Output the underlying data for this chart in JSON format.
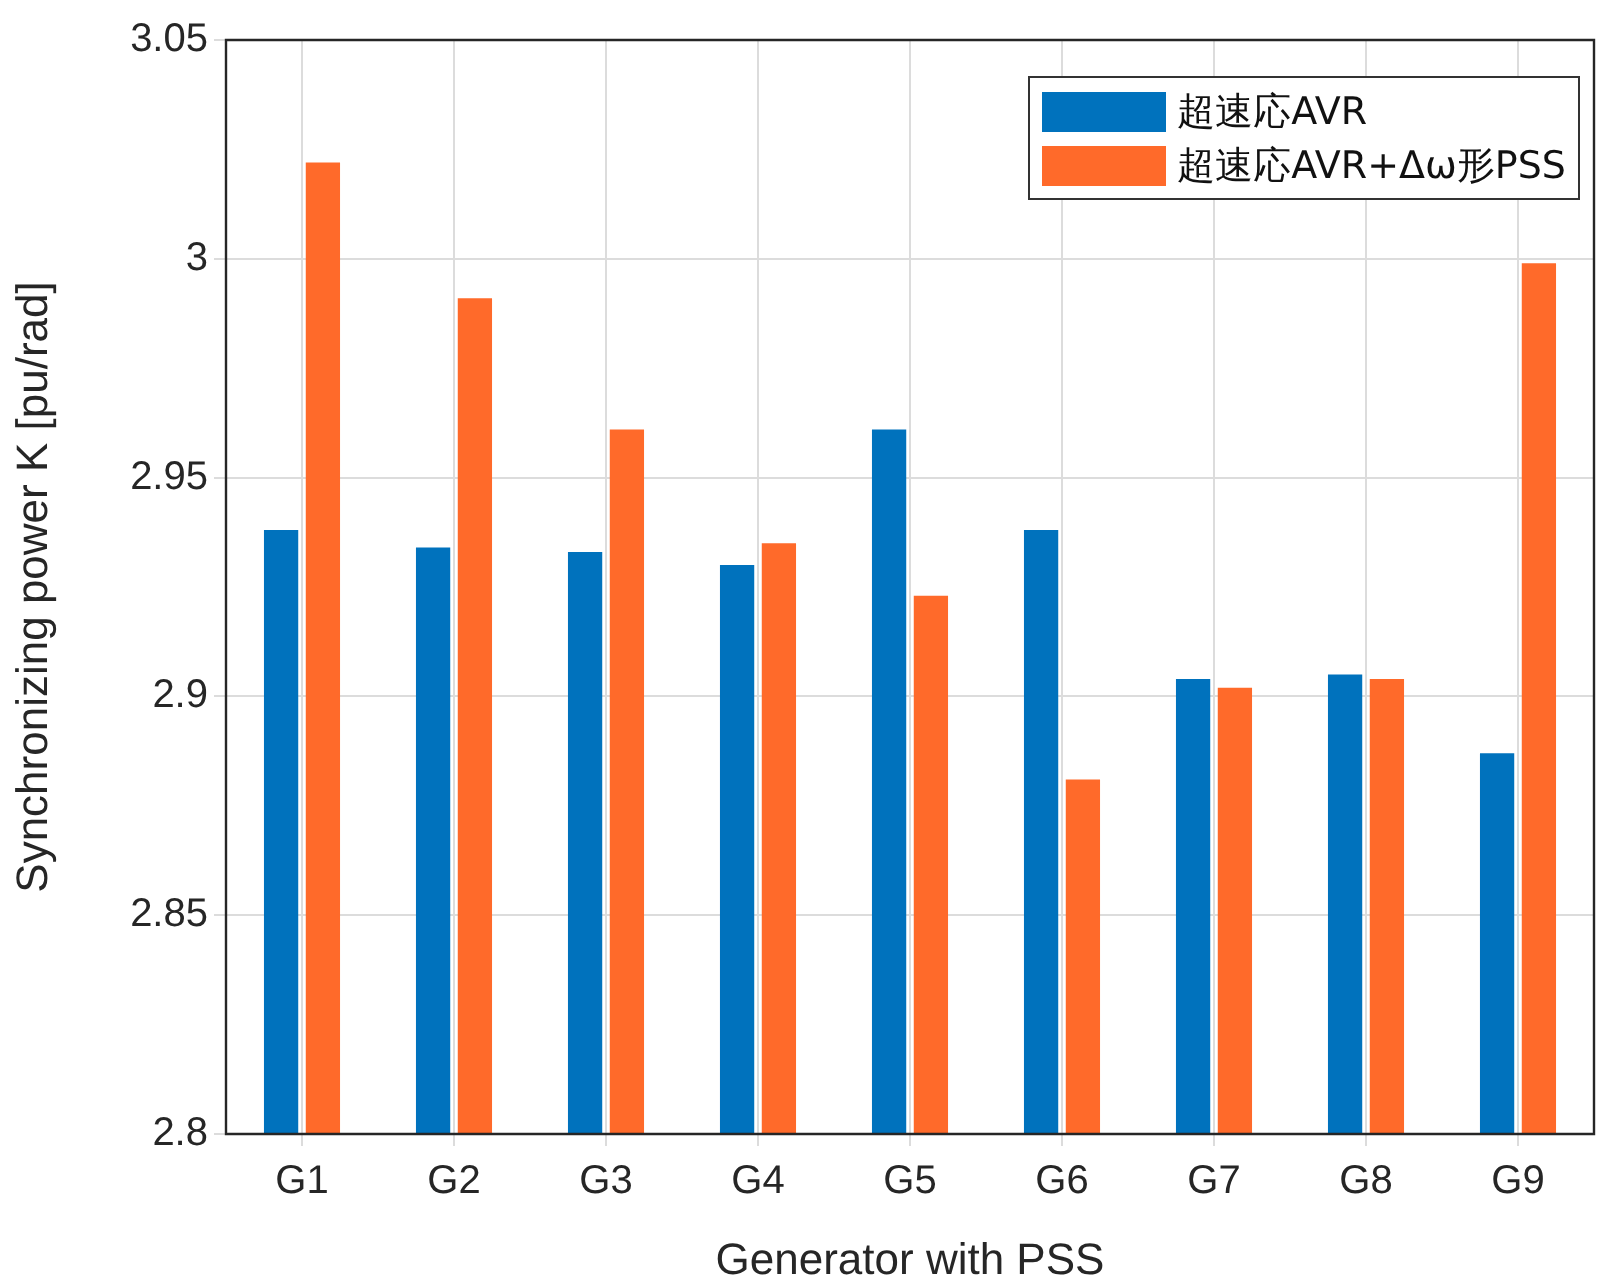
{
  "chart_data": {
    "type": "bar",
    "xlabel": "Generator with PSS",
    "ylabel": "Synchronizing power K [pu/rad]",
    "categories": [
      "G1",
      "G2",
      "G3",
      "G4",
      "G5",
      "G6",
      "G7",
      "G8",
      "G9"
    ],
    "series": [
      {
        "name": "超速応AVR",
        "color": "#0072bd",
        "values": [
          2.938,
          2.934,
          2.933,
          2.93,
          2.961,
          2.938,
          2.904,
          2.905,
          2.887
        ]
      },
      {
        "name": "超速応AVR+Δω形PSS",
        "color": "#ff6a2a",
        "values": [
          3.022,
          2.991,
          2.961,
          2.935,
          2.923,
          2.881,
          2.902,
          2.904,
          2.999
        ]
      }
    ],
    "ylim": [
      2.8,
      3.05
    ],
    "yticks": [
      2.8,
      2.85,
      2.9,
      2.95,
      3,
      3.05
    ],
    "grid": true,
    "legend": "top right"
  }
}
